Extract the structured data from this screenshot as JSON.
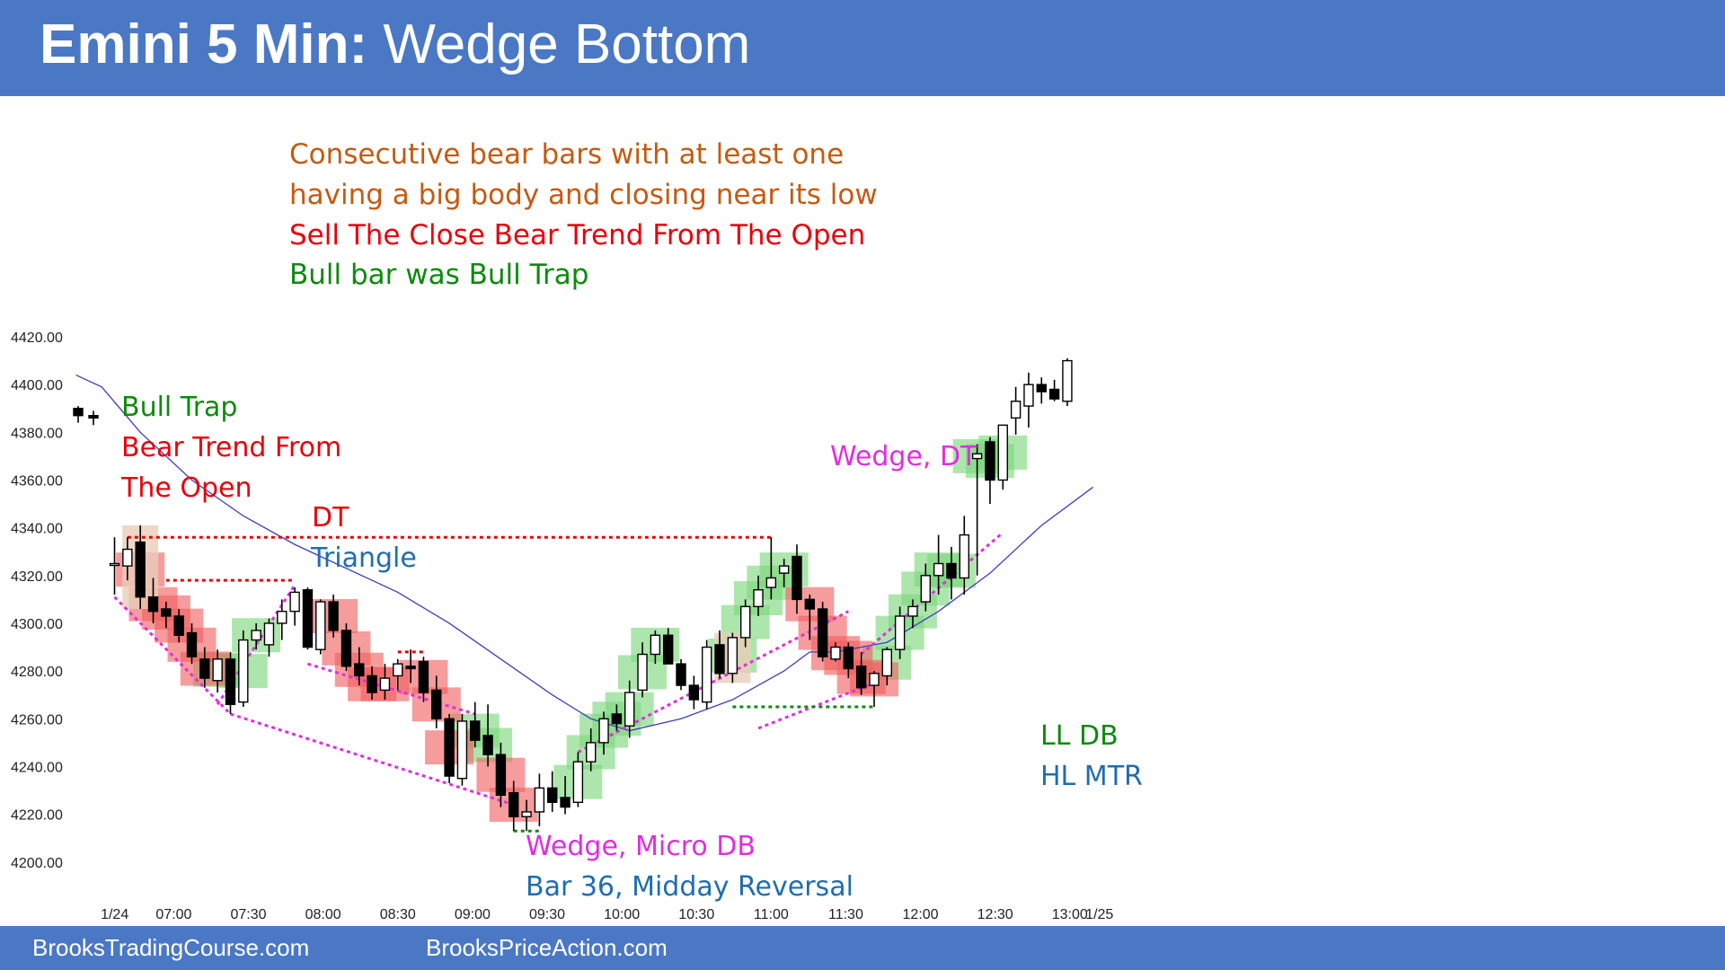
{
  "header": {
    "title_bold": "Emini 5 Min:",
    "title_rest": " Wedge Bottom"
  },
  "notes": [
    {
      "text": "Consecutive bear bars with at least one",
      "color": "#c55a11"
    },
    {
      "text": "having a big body and closing near its low",
      "color": "#c55a11"
    },
    {
      "text": "Sell The Close Bear Trend From The Open",
      "color": "#e8000b"
    },
    {
      "text": "Bull bar was Bull Trap",
      "color": "#0d8a0d"
    }
  ],
  "footer": {
    "left": "BrooksTradingCourse.com",
    "right": "BrooksPriceAction.com"
  },
  "colors": {
    "bull_highlight": "#7bd67b",
    "bear_highlight": "#f06060",
    "magenta": "#e02ee0",
    "red": "#e8000b",
    "green": "#0d8a0d",
    "blue": "#1f6db0",
    "ema": "#3d3dc0"
  },
  "chart_data": {
    "type": "candlestick",
    "ylim": [
      4200,
      4420
    ],
    "y_ticks": [
      "4420.00",
      "4400.00",
      "4380.00",
      "4360.00",
      "4340.00",
      "4320.00",
      "4300.00",
      "4280.00",
      "4260.00",
      "4240.00",
      "4220.00",
      "4200.00"
    ],
    "x_ticks": [
      "1/24",
      "07:00",
      "07:30",
      "08:00",
      "08:30",
      "09:00",
      "09:30",
      "10:00",
      "10:30",
      "11:00",
      "11:30",
      "12:00",
      "12:30",
      "13:00",
      "1/25"
    ],
    "prior_day_bars": [
      [
        4390,
        4391,
        4384,
        4387
      ],
      [
        4387,
        4389,
        4383,
        4386
      ]
    ],
    "bars": [
      [
        4325,
        4336,
        4312,
        4325
      ],
      [
        4324,
        4336,
        4318,
        4331
      ],
      [
        4334,
        4341,
        4306,
        4311
      ],
      [
        4311,
        4319,
        4300,
        4305
      ],
      [
        4306,
        4309,
        4298,
        4303
      ],
      [
        4303,
        4306,
        4292,
        4295
      ],
      [
        4296,
        4300,
        4283,
        4286
      ],
      [
        4285,
        4290,
        4273,
        4277
      ],
      [
        4276,
        4289,
        4271,
        4285
      ],
      [
        4285,
        4288,
        4262,
        4266
      ],
      [
        4267,
        4297,
        4265,
        4293
      ],
      [
        4293,
        4300,
        4289,
        4297
      ],
      [
        4291,
        4302,
        4286,
        4300
      ],
      [
        4300,
        4310,
        4293,
        4305
      ],
      [
        4305,
        4315,
        4299,
        4313
      ],
      [
        4314,
        4315,
        4289,
        4290
      ],
      [
        4289,
        4310,
        4287,
        4309
      ],
      [
        4309,
        4312,
        4294,
        4297
      ],
      [
        4297,
        4300,
        4280,
        4282
      ],
      [
        4283,
        4290,
        4274,
        4278
      ],
      [
        4278,
        4282,
        4268,
        4271
      ],
      [
        4272,
        4283,
        4268,
        4277
      ],
      [
        4278,
        4285,
        4272,
        4283
      ],
      [
        4282,
        4289,
        4275,
        4281
      ],
      [
        4284,
        4286,
        4267,
        4271
      ],
      [
        4272,
        4278,
        4256,
        4260
      ],
      [
        4260,
        4262,
        4233,
        4236
      ],
      [
        4235,
        4262,
        4232,
        4259
      ],
      [
        4259,
        4267,
        4248,
        4251
      ],
      [
        4253,
        4266,
        4240,
        4245
      ],
      [
        4245,
        4250,
        4223,
        4228
      ],
      [
        4229,
        4234,
        4213,
        4219
      ],
      [
        4219,
        4226,
        4213,
        4221
      ],
      [
        4221,
        4237,
        4215,
        4231
      ],
      [
        4231,
        4238,
        4221,
        4225
      ],
      [
        4227,
        4236,
        4220,
        4223
      ],
      [
        4225,
        4246,
        4223,
        4242
      ],
      [
        4242,
        4256,
        4238,
        4250
      ],
      [
        4250,
        4263,
        4245,
        4260
      ],
      [
        4262,
        4266,
        4255,
        4258
      ],
      [
        4257,
        4276,
        4252,
        4271
      ],
      [
        4272,
        4292,
        4269,
        4287
      ],
      [
        4287,
        4297,
        4283,
        4295
      ],
      [
        4295,
        4298,
        4285,
        4283
      ],
      [
        4283,
        4285,
        4272,
        4274
      ],
      [
        4274,
        4278,
        4264,
        4268
      ],
      [
        4267,
        4293,
        4264,
        4290
      ],
      [
        4291,
        4297,
        4277,
        4279
      ],
      [
        4279,
        4296,
        4275,
        4294
      ],
      [
        4294,
        4310,
        4290,
        4307
      ],
      [
        4307,
        4320,
        4303,
        4314
      ],
      [
        4315,
        4336,
        4310,
        4319
      ],
      [
        4321,
        4327,
        4315,
        4324
      ],
      [
        4328,
        4333,
        4304,
        4310
      ],
      [
        4310,
        4312,
        4293,
        4306
      ],
      [
        4306,
        4309,
        4284,
        4286
      ],
      [
        4285,
        4292,
        4284,
        4290
      ],
      [
        4290,
        4292,
        4277,
        4281
      ],
      [
        4282,
        4288,
        4270,
        4273
      ],
      [
        4274,
        4280,
        4265,
        4279
      ],
      [
        4278,
        4290,
        4274,
        4289
      ],
      [
        4289,
        4307,
        4285,
        4303
      ],
      [
        4303,
        4310,
        4298,
        4307
      ],
      [
        4309,
        4325,
        4305,
        4320
      ],
      [
        4320,
        4337,
        4312,
        4325
      ],
      [
        4325,
        4332,
        4310,
        4319
      ],
      [
        4319,
        4345,
        4312,
        4337
      ],
      [
        4369,
        4375,
        4320,
        4371
      ],
      [
        4376,
        4378,
        4350,
        4360
      ],
      [
        4360,
        4381,
        4356,
        4383
      ],
      [
        4386,
        4399,
        4379,
        4393
      ],
      [
        4391,
        4405,
        4382,
        4400
      ],
      [
        4400,
        4403,
        4392,
        4397
      ],
      [
        4398,
        4402,
        4393,
        4394
      ],
      [
        4393,
        4411,
        4391,
        4410
      ]
    ],
    "ema": [
      [
        -3,
        4404
      ],
      [
        -1,
        4399
      ],
      [
        2,
        4380
      ],
      [
        6,
        4360
      ],
      [
        10,
        4345
      ],
      [
        14,
        4333
      ],
      [
        18,
        4323
      ],
      [
        22,
        4313
      ],
      [
        26,
        4300
      ],
      [
        30,
        4285
      ],
      [
        34,
        4270
      ],
      [
        37,
        4260
      ],
      [
        40,
        4255
      ],
      [
        44,
        4260
      ],
      [
        48,
        4268
      ],
      [
        52,
        4280
      ],
      [
        54,
        4288
      ],
      [
        56,
        4288
      ],
      [
        60,
        4292
      ],
      [
        64,
        4305
      ],
      [
        68,
        4321
      ],
      [
        72,
        4341
      ],
      [
        76,
        4357
      ]
    ],
    "ema_start_note": "begins near 4404 at the session open",
    "annotations": [
      {
        "text": "Bull Trap",
        "color": "#0d8a0d"
      },
      {
        "text": "Bear Trend From",
        "color": "#e8000b"
      },
      {
        "text": "The Open",
        "color": "#e8000b"
      },
      {
        "text": "DT",
        "color": "#e8000b"
      },
      {
        "text": "Triangle",
        "color": "#1f6db0"
      },
      {
        "text": "Wedge, DT",
        "color": "#e02ee0"
      },
      {
        "text": "Wedge, Micro DB",
        "color": "#e02ee0"
      },
      {
        "text": "Bar 36, Midday Reversal",
        "color": "#1f6db0"
      },
      {
        "text": "LL DB",
        "color": "#0d8a0d"
      },
      {
        "text": "HL MTR",
        "color": "#1f6db0"
      }
    ]
  }
}
